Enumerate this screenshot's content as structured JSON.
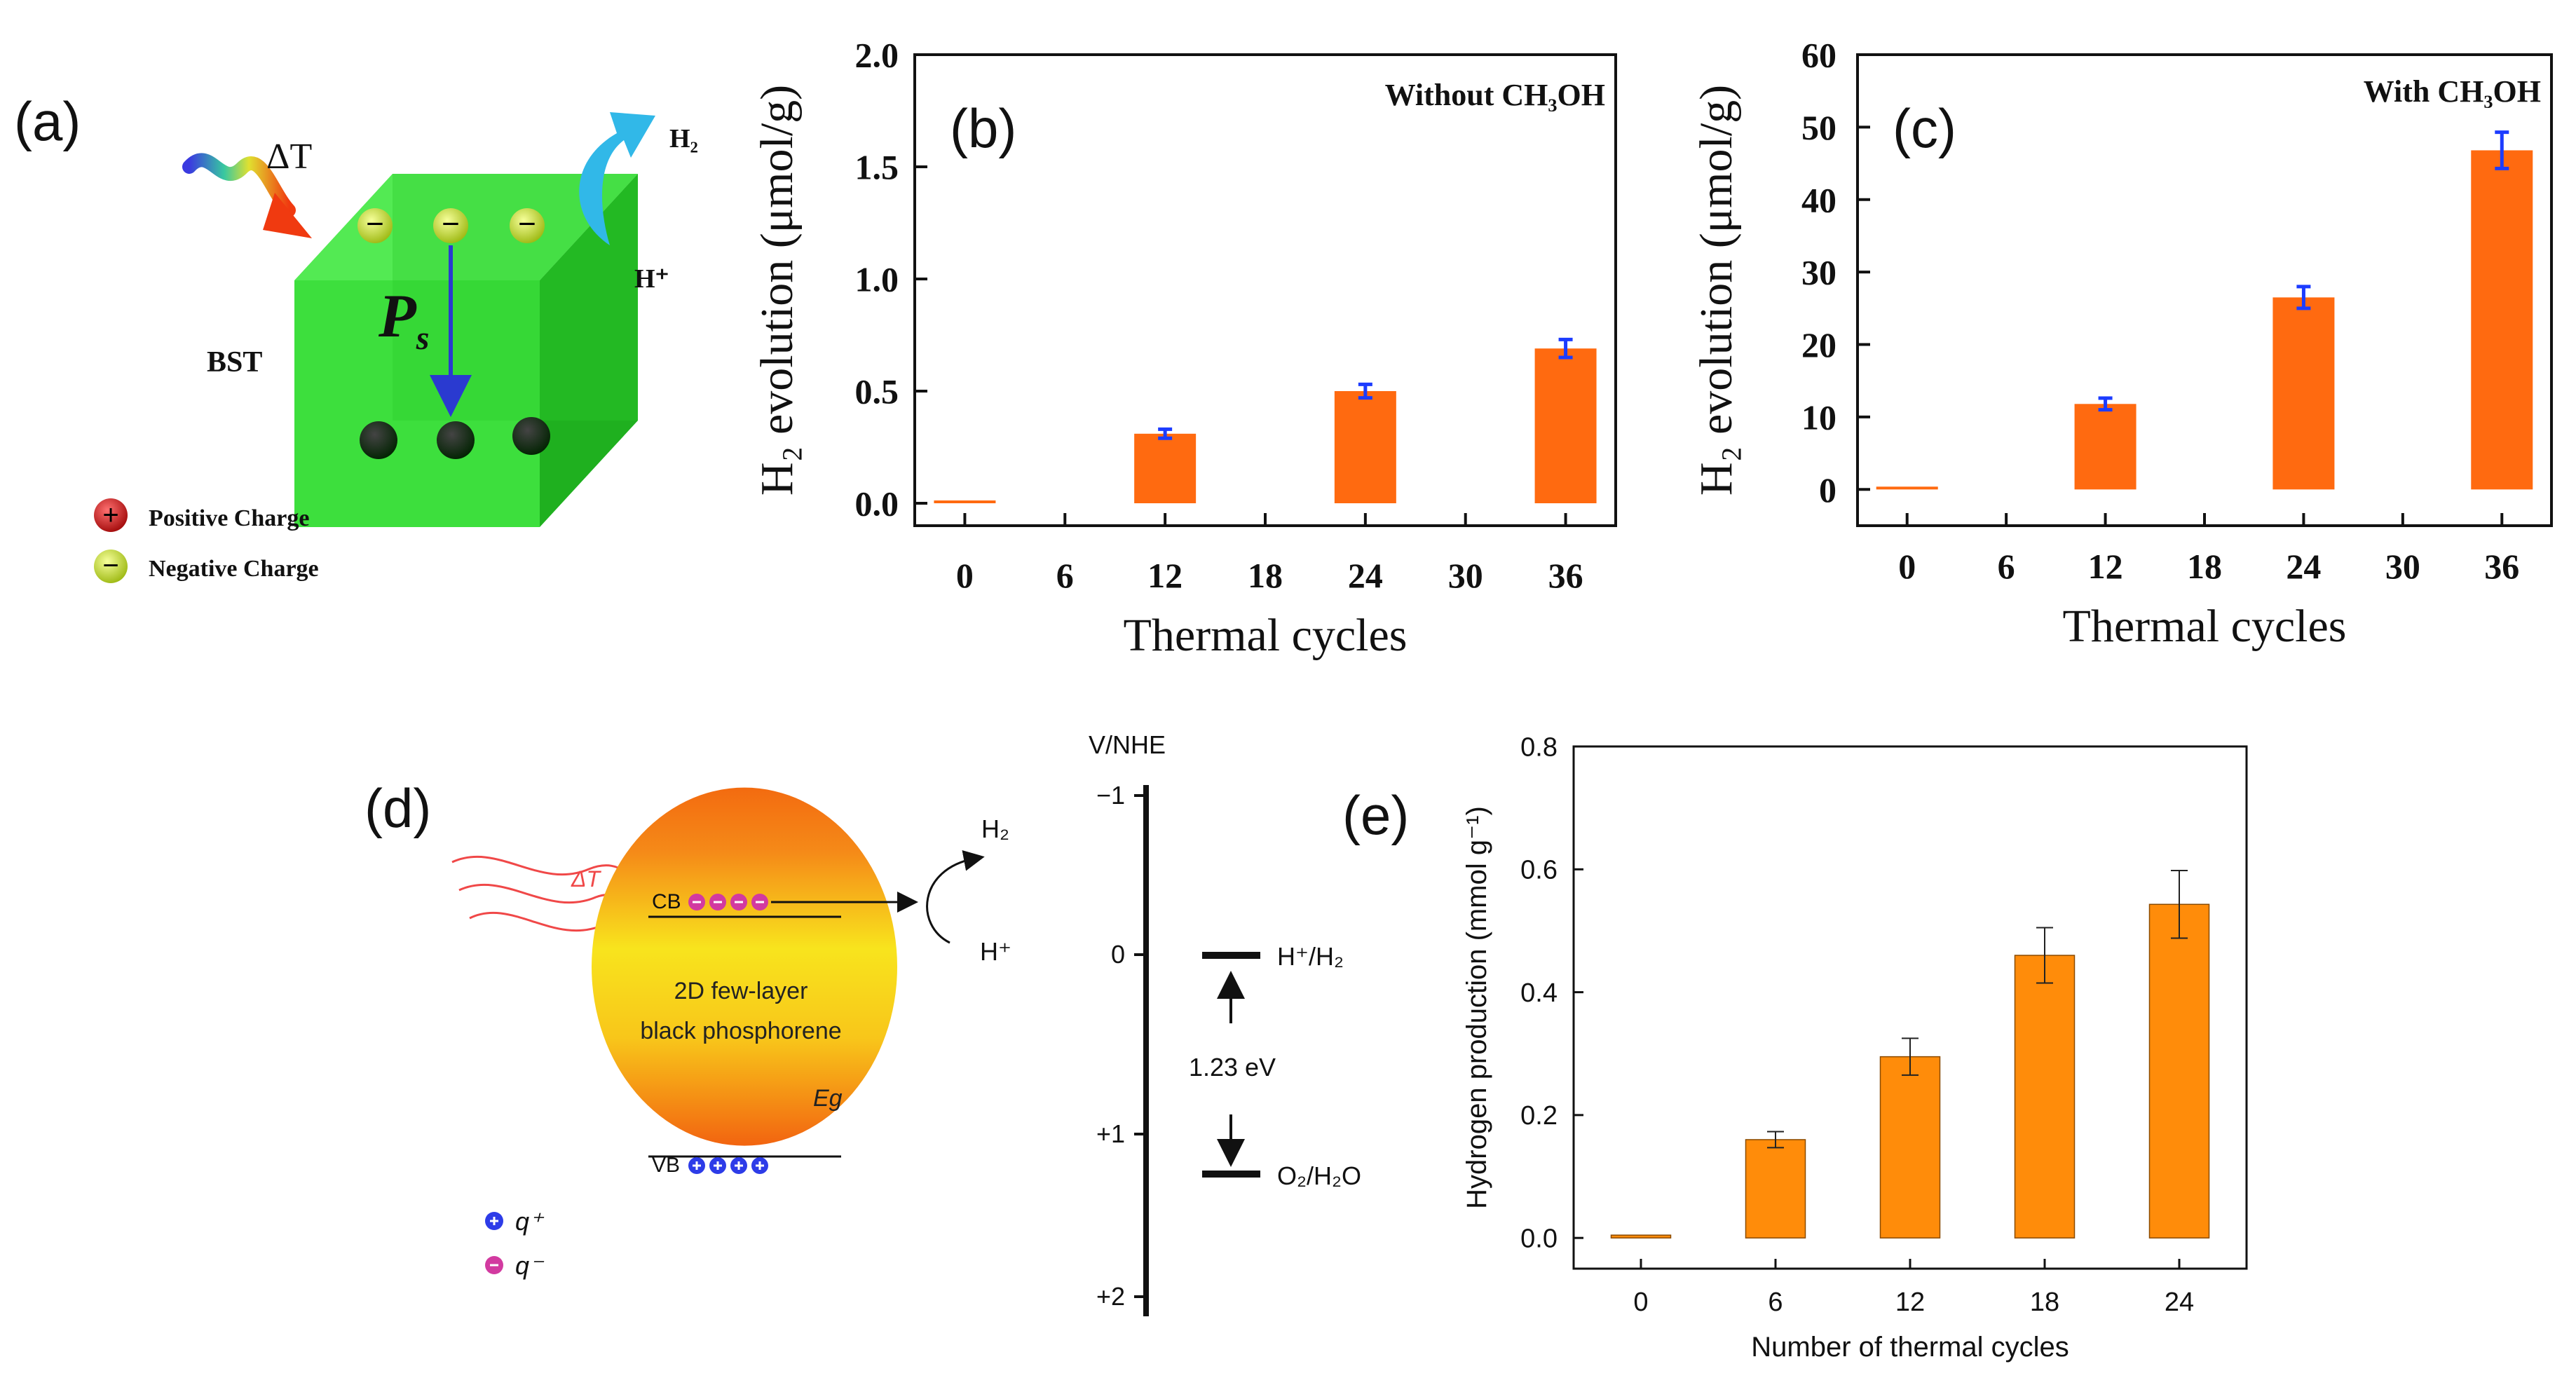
{
  "panel_labels": [
    "(a)",
    "(b)",
    "(c)",
    "(d)",
    "(e)"
  ],
  "panel_a": {
    "delta_t": "ΔT",
    "h2": "H₂",
    "hplus": "H⁺",
    "ps": "P",
    "ps_sub": "s",
    "material": "BST",
    "legend": [
      "Positive Charge",
      "Negative Charge"
    ],
    "minus_sign": "−",
    "plus_sign": "+",
    "colors": {
      "cube": "#3fe33f",
      "arrow": "#31b8e8",
      "positive": "#d32020",
      "negative": "#c9d82e"
    }
  },
  "panel_d": {
    "delta_t": "ΔT",
    "cb": "CB",
    "vb": "VB",
    "material_line1": "2D few-layer",
    "material_line2": "black phosphorene",
    "eg": "Eg",
    "h2": "H₂",
    "hplus": "H⁺",
    "axis_title": "V/NHE",
    "ticks": [
      "−1",
      "0",
      "+1",
      "+2"
    ],
    "h_level": "H⁺/H₂",
    "o_level": "O₂/H₂O",
    "gap": "1.23 eV",
    "legend": [
      "q⁺",
      "q⁻"
    ],
    "colors": {
      "sphere_top": "#f37012",
      "sphere_mid": "#f7e11d",
      "positive": "#2d3ce8",
      "negative": "#d23aa0"
    }
  },
  "chart_data": [
    {
      "id": "b",
      "type": "bar",
      "title": "Without CH₃OH",
      "xlabel": "Thermal cycles",
      "ylabel": "H₂ evolution (μmol/g)",
      "x": [
        0,
        12,
        24,
        36
      ],
      "values": [
        0.0,
        0.31,
        0.5,
        0.69
      ],
      "errors": [
        0,
        0.02,
        0.03,
        0.04
      ],
      "xticks": [
        0,
        6,
        12,
        18,
        24,
        30,
        36
      ],
      "xlim": [
        -3,
        39
      ],
      "yticks": [
        0.0,
        0.5,
        1.0,
        1.5,
        2.0
      ],
      "ytick_labels": [
        "0.0",
        "0.5",
        "1.0",
        "1.5",
        "2.0"
      ],
      "ylim": [
        -0.1,
        2.0
      ],
      "bar_color": "#ff6a10",
      "error_color": "#1c3cff"
    },
    {
      "id": "c",
      "type": "bar",
      "title": "With CH₃OH",
      "xlabel": "Thermal cycles",
      "ylabel": "H₂ evolution (μmol/g)",
      "x": [
        0,
        12,
        24,
        36
      ],
      "values": [
        0,
        11.8,
        26.5,
        46.8
      ],
      "errors": [
        0,
        0.8,
        1.5,
        2.5
      ],
      "xticks": [
        0,
        6,
        12,
        18,
        24,
        30,
        36
      ],
      "xlim": [
        -3,
        39
      ],
      "yticks": [
        0,
        10,
        20,
        30,
        40,
        50,
        60
      ],
      "ytick_labels": [
        "0",
        "10",
        "20",
        "30",
        "40",
        "50",
        "60"
      ],
      "ylim": [
        -5,
        60
      ],
      "bar_color": "#ff6a10",
      "error_color": "#1c3cff"
    },
    {
      "id": "e",
      "type": "bar",
      "title": "",
      "xlabel": "Number of thermal cycles",
      "ylabel": "Hydrogen production (mmol g⁻¹)",
      "x": [
        0,
        6,
        12,
        18,
        24
      ],
      "values": [
        0.0,
        0.16,
        0.295,
        0.46,
        0.543
      ],
      "errors": [
        0,
        0.013,
        0.03,
        0.045,
        0.055
      ],
      "xticks": [
        0,
        6,
        12,
        18,
        24
      ],
      "xlim": [
        -3,
        27
      ],
      "yticks": [
        0.0,
        0.2,
        0.4,
        0.6,
        0.8
      ],
      "ytick_labels": [
        "0.0",
        "0.2",
        "0.4",
        "0.6",
        "0.8"
      ],
      "ylim": [
        -0.05,
        0.8
      ],
      "bar_color": "#ff8c0a",
      "error_color": "#222222"
    }
  ]
}
